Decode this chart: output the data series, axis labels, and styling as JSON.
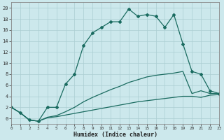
{
  "xlabel": "Humidex (Indice chaleur)",
  "bg_color": "#cce8ec",
  "grid_color": "#aacdd2",
  "line_color": "#1a6b60",
  "xlim": [
    0,
    23
  ],
  "ylim": [
    -1,
    21
  ],
  "xticks": [
    0,
    1,
    2,
    3,
    4,
    5,
    6,
    7,
    8,
    9,
    10,
    11,
    12,
    13,
    14,
    15,
    16,
    17,
    18,
    19,
    20,
    21,
    22,
    23
  ],
  "yticks": [
    0,
    2,
    4,
    6,
    8,
    10,
    12,
    14,
    16,
    18,
    20
  ],
  "series1_x": [
    0,
    1,
    2,
    3,
    4,
    5,
    6,
    7,
    8,
    9,
    10,
    11,
    12,
    13,
    14,
    15,
    16,
    17,
    18,
    19,
    20,
    21,
    22,
    23
  ],
  "series1_y": [
    2.0,
    1.0,
    -0.3,
    -0.5,
    2.0,
    2.0,
    6.2,
    8.0,
    13.2,
    15.5,
    16.5,
    17.5,
    17.5,
    19.8,
    18.5,
    18.8,
    18.5,
    16.5,
    18.8,
    13.5,
    8.5,
    8.0,
    5.0,
    4.5
  ],
  "series2_x": [
    0,
    1,
    2,
    3,
    4,
    5,
    6,
    7,
    8,
    9,
    10,
    11,
    12,
    13,
    14,
    15,
    16,
    17,
    18,
    19,
    20,
    21,
    22,
    23
  ],
  "series2_y": [
    2.0,
    1.0,
    -0.3,
    -0.5,
    0.2,
    0.5,
    1.2,
    2.0,
    3.0,
    3.8,
    4.5,
    5.2,
    5.8,
    6.5,
    7.0,
    7.5,
    7.8,
    8.0,
    8.2,
    8.5,
    4.5,
    5.0,
    4.5,
    4.5
  ],
  "series3_x": [
    0,
    1,
    2,
    3,
    4,
    5,
    6,
    7,
    8,
    9,
    10,
    11,
    12,
    13,
    14,
    15,
    16,
    17,
    18,
    19,
    20,
    21,
    22,
    23
  ],
  "series3_y": [
    2.0,
    1.0,
    -0.3,
    -0.5,
    0.1,
    0.3,
    0.6,
    0.9,
    1.2,
    1.5,
    1.8,
    2.1,
    2.4,
    2.7,
    3.0,
    3.2,
    3.4,
    3.6,
    3.8,
    4.0,
    4.0,
    3.8,
    4.2,
    4.3
  ]
}
